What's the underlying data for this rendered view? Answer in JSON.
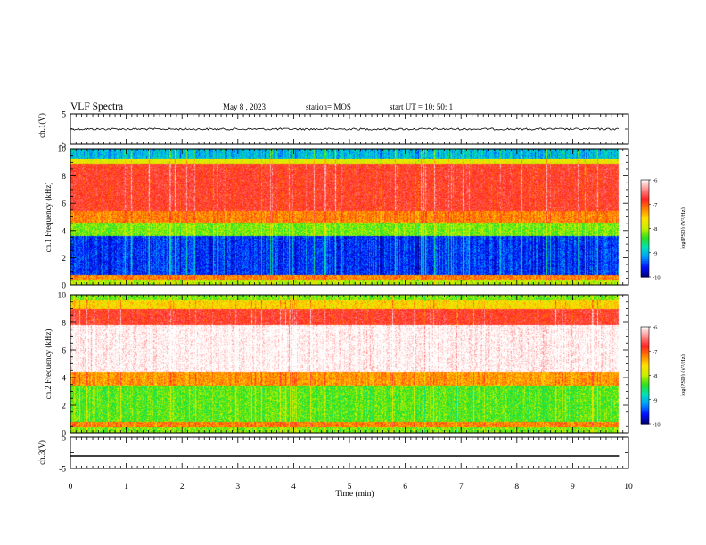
{
  "header": {
    "title": "VLF Spectra",
    "date": "May 8 , 2023",
    "station": "station= MOS",
    "start": "start UT = 10: 50: 1"
  },
  "colors": {
    "spectrogram_scale": [
      "#00007a",
      "#0010ff",
      "#00a0ff",
      "#00e0b0",
      "#30e020",
      "#c8f000",
      "#ffe000",
      "#ff8000",
      "#ff2020",
      "#ff9090",
      "#ffffff"
    ]
  },
  "colorbar": {
    "label": "log(PSD) (V²/Hz)",
    "ticks": [
      "-6",
      "-7",
      "-8",
      "-9",
      "-10"
    ]
  },
  "chart_data": [
    {
      "type": "line",
      "panel": "ch.1(V)",
      "ylabel": "ch.1(V)",
      "ylim": [
        -5,
        5
      ],
      "yticks": [
        "5",
        "-5"
      ],
      "xlim": [
        0,
        10
      ],
      "series": [
        {
          "x": [
            0,
            9.83
          ],
          "y": [
            0,
            0
          ]
        }
      ]
    },
    {
      "type": "heatmap",
      "panel": "ch.1 spectrogram",
      "ylabel": "ch.1 Frequency (kHz)",
      "ylim": [
        0,
        10
      ],
      "yticks": [
        "0",
        "2",
        "4",
        "6",
        "8",
        "10"
      ],
      "xlim": [
        0,
        10
      ],
      "data_extent_x": [
        0,
        9.83
      ],
      "colorbar_range": [
        -10,
        -6
      ],
      "bands": [
        {
          "f": [
            0.0,
            0.4
          ],
          "logpsd": -8.0
        },
        {
          "f": [
            0.4,
            0.7
          ],
          "logpsd": -7.2
        },
        {
          "f": [
            0.7,
            3.6
          ],
          "logpsd": -9.5
        },
        {
          "f": [
            3.6,
            4.6
          ],
          "logpsd": -8.2
        },
        {
          "f": [
            4.6,
            5.4
          ],
          "logpsd": -7.2
        },
        {
          "f": [
            5.4,
            8.9
          ],
          "logpsd": -6.8
        },
        {
          "f": [
            8.9,
            9.3
          ],
          "logpsd": -7.8
        },
        {
          "f": [
            9.3,
            10.0
          ],
          "logpsd": -9.0
        }
      ]
    },
    {
      "type": "heatmap",
      "panel": "ch.2 spectrogram",
      "ylabel": "ch.2 Frequency (kHz)",
      "ylim": [
        0,
        10
      ],
      "yticks": [
        "0",
        "2",
        "4",
        "6",
        "8",
        "10"
      ],
      "xlim": [
        0,
        10
      ],
      "data_extent_x": [
        0,
        9.83
      ],
      "colorbar_range": [
        -10,
        -6
      ],
      "bands": [
        {
          "f": [
            0.0,
            0.4
          ],
          "logpsd": -8.2
        },
        {
          "f": [
            0.4,
            0.8
          ],
          "logpsd": -7.2
        },
        {
          "f": [
            0.8,
            3.4
          ],
          "logpsd": -8.3
        },
        {
          "f": [
            3.4,
            4.4
          ],
          "logpsd": -7.3
        },
        {
          "f": [
            4.4,
            7.8
          ],
          "logpsd": -6.0
        },
        {
          "f": [
            7.8,
            9.0
          ],
          "logpsd": -6.8
        },
        {
          "f": [
            9.0,
            9.6
          ],
          "logpsd": -7.6
        },
        {
          "f": [
            9.6,
            10.0
          ],
          "logpsd": -8.2
        }
      ]
    },
    {
      "type": "line",
      "panel": "ch.3(V)",
      "ylabel": "ch.3(V)",
      "ylim": [
        -5,
        5
      ],
      "yticks": [
        "5",
        "-5"
      ],
      "xlim": [
        0,
        10
      ],
      "xlabel": "Time (min)",
      "xticks": [
        "0",
        "1",
        "2",
        "3",
        "4",
        "5",
        "6",
        "7",
        "8",
        "9",
        "10"
      ],
      "series": [
        {
          "x": [
            0,
            9.83
          ],
          "y": [
            -1.0,
            -1.0
          ]
        }
      ]
    }
  ]
}
